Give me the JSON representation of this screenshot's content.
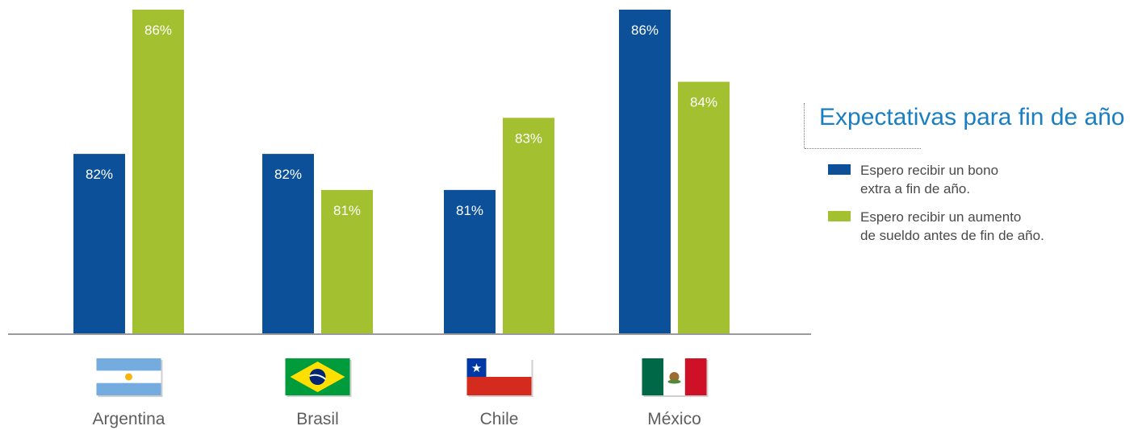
{
  "chart_data": {
    "type": "bar",
    "categories": [
      "Argentina",
      "Brasil",
      "Chile",
      "México"
    ],
    "series": [
      {
        "name": "Espero recibir un bono extra a fin de año.",
        "color": "#0b5098",
        "values": [
          82,
          82,
          81,
          86
        ],
        "labels": [
          "82%",
          "82%",
          "81%",
          "86%"
        ]
      },
      {
        "name": "Espero recibir un aumento de sueldo antes de fin de año.",
        "color": "#a2c02f",
        "values": [
          86,
          81,
          83,
          84
        ],
        "labels": [
          "86%",
          "81%",
          "83%",
          "84%"
        ]
      }
    ],
    "ylim": [
      77,
      86
    ],
    "title": "Expectativas para fin de año",
    "legend_position": "right",
    "grid": false,
    "flags": [
      "flag-argentina-icon",
      "flag-brasil-icon",
      "flag-chile-icon",
      "flag-mexico-icon"
    ]
  },
  "legend": {
    "title": "Expectativas para fin de año",
    "items": [
      {
        "lines": [
          "Espero recibir un bono",
          "extra a fin de año."
        ],
        "color": "#0b5098"
      },
      {
        "lines": [
          "Espero recibir un aumento",
          "de sueldo antes de fin de año."
        ],
        "color": "#a2c02f"
      }
    ]
  }
}
